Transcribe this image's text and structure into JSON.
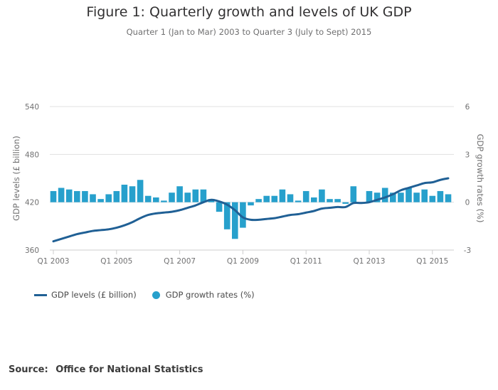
{
  "header": {
    "title": "Figure 1: Quarterly growth and levels of UK GDP",
    "subtitle": "Quarter 1 (Jan to Mar) 2003 to Quarter 3 (July to Sept) 2015"
  },
  "legend": {
    "items": [
      {
        "label": "GDP levels (£ billion)",
        "type": "line"
      },
      {
        "label": "GDP growth rates (%)",
        "type": "bar"
      }
    ]
  },
  "source": {
    "label": "Source:",
    "text": "Office for National Statistics"
  },
  "colors": {
    "line": "#206095",
    "bar": "#27a0cc",
    "grid": "#e0e0e0",
    "text": "#707071"
  },
  "chart_data": {
    "type": "bar+line",
    "title": "Figure 1: Quarterly growth and levels of UK GDP",
    "subtitle": "Quarter 1 (Jan to Mar) 2003 to Quarter 3 (July to Sept) 2015",
    "ylabel_left": "GDP levels (£ billion)",
    "ylabel_right": "GDP growth rates (%)",
    "ylim_left": [
      360,
      540
    ],
    "ylim_right": [
      -3,
      6
    ],
    "yticks_left": [
      "360",
      "420",
      "480",
      "540"
    ],
    "yticks_right": [
      "-3",
      "0",
      "3",
      "6"
    ],
    "xticks": [
      "Q1 2003",
      "Q1 2005",
      "Q1 2007",
      "Q1 2009",
      "Q1 2011",
      "Q1 2013",
      "Q1 2015"
    ],
    "xtick_indices": [
      0,
      8,
      16,
      24,
      32,
      40,
      48
    ],
    "grid": true,
    "legend_position": "bottom-left",
    "categories": [
      "Q1 2003",
      "Q2 2003",
      "Q3 2003",
      "Q4 2003",
      "Q1 2004",
      "Q2 2004",
      "Q3 2004",
      "Q4 2004",
      "Q1 2005",
      "Q2 2005",
      "Q3 2005",
      "Q4 2005",
      "Q1 2006",
      "Q2 2006",
      "Q3 2006",
      "Q4 2006",
      "Q1 2007",
      "Q2 2007",
      "Q3 2007",
      "Q4 2007",
      "Q1 2008",
      "Q2 2008",
      "Q3 2008",
      "Q4 2008",
      "Q1 2009",
      "Q2 2009",
      "Q3 2009",
      "Q4 2009",
      "Q1 2010",
      "Q2 2010",
      "Q3 2010",
      "Q4 2010",
      "Q1 2011",
      "Q2 2011",
      "Q3 2011",
      "Q4 2011",
      "Q1 2012",
      "Q2 2012",
      "Q3 2012",
      "Q4 2012",
      "Q1 2013",
      "Q2 2013",
      "Q3 2013",
      "Q4 2013",
      "Q1 2014",
      "Q2 2014",
      "Q3 2014",
      "Q4 2014",
      "Q1 2015",
      "Q2 2015",
      "Q3 2015"
    ],
    "series": [
      {
        "name": "GDP growth rates (%)",
        "type": "bar",
        "axis": "right",
        "values": [
          0.7,
          0.9,
          0.8,
          0.7,
          0.7,
          0.5,
          0.2,
          0.5,
          0.7,
          1.1,
          1.0,
          1.4,
          0.4,
          0.3,
          0.1,
          0.6,
          1.0,
          0.6,
          0.8,
          0.8,
          0.2,
          -0.6,
          -1.7,
          -2.3,
          -1.6,
          -0.2,
          0.2,
          0.4,
          0.4,
          0.8,
          0.5,
          0.1,
          0.7,
          0.3,
          0.8,
          0.2,
          0.2,
          -0.1,
          1.0,
          -0.1,
          0.7,
          0.6,
          0.9,
          0.6,
          0.6,
          0.9,
          0.6,
          0.8,
          0.4,
          0.7,
          0.5
        ]
      },
      {
        "name": "GDP levels (£ billion)",
        "type": "line",
        "axis": "left",
        "values": [
          371,
          374,
          377,
          380,
          382,
          384,
          385,
          386,
          388,
          391,
          395,
          400,
          404,
          406,
          407,
          408,
          410,
          413,
          416,
          420,
          423,
          421,
          417,
          410,
          401,
          398,
          398,
          399,
          400,
          402,
          404,
          405,
          407,
          409,
          412,
          413,
          414,
          414,
          419,
          419,
          420,
          423,
          426,
          430,
          435,
          438,
          441,
          444,
          445,
          448,
          450
        ]
      }
    ]
  }
}
